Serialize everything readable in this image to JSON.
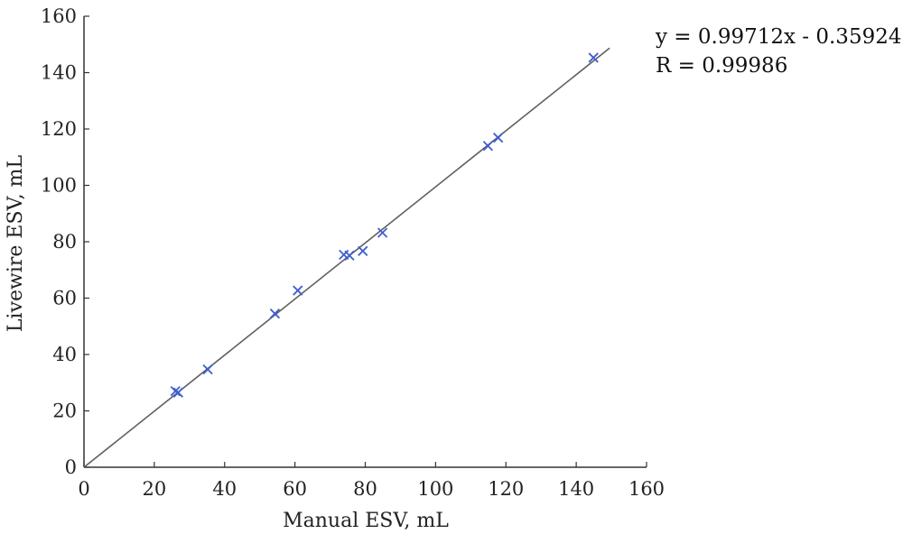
{
  "chart_data": {
    "type": "scatter",
    "title": "",
    "xlabel": "Manual ESV, mL",
    "ylabel": "Livewire ESV, mL",
    "xlim": [
      0,
      160
    ],
    "ylim": [
      0,
      160
    ],
    "xticks": [
      0,
      20,
      40,
      60,
      80,
      100,
      120,
      140,
      160
    ],
    "yticks": [
      0,
      20,
      40,
      60,
      80,
      100,
      120,
      140,
      160
    ],
    "grid": false,
    "series": [
      {
        "marker": "x",
        "color": "#3f5fd0",
        "points": [
          {
            "x": 26,
            "y": 27
          },
          {
            "x": 26.8,
            "y": 26.5
          },
          {
            "x": 35.2,
            "y": 34.7
          },
          {
            "x": 54.3,
            "y": 54.5
          },
          {
            "x": 60.8,
            "y": 62.7
          },
          {
            "x": 73.9,
            "y": 75.4
          },
          {
            "x": 75.5,
            "y": 75.1
          },
          {
            "x": 79.3,
            "y": 76.7
          },
          {
            "x": 84.9,
            "y": 83.2
          },
          {
            "x": 114.9,
            "y": 114
          },
          {
            "x": 117.8,
            "y": 116.9
          },
          {
            "x": 144.9,
            "y": 145.3
          }
        ]
      }
    ],
    "fit_line": {
      "slope": 0.99712,
      "intercept": -0.35924,
      "x_range": [
        0,
        149.5
      ],
      "color": "#606060"
    },
    "annotations": [
      "y = 0.99712x - 0.35924",
      "R = 0.99986"
    ]
  }
}
